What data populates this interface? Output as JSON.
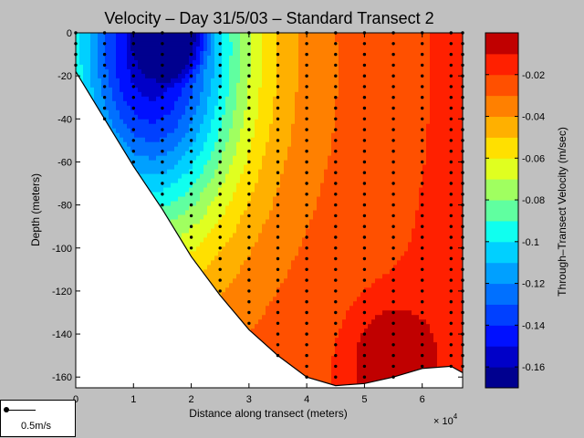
{
  "chart_data": {
    "type": "heatmap",
    "title": "Velocity – Day 31/5/03 – Standard Transect 2",
    "xlabel": "Distance along transect (meters)",
    "ylabel": "Depth (meters)",
    "x_multiplier_label": "× 10",
    "x_multiplier_exponent": "4",
    "xlim": [
      0,
      67000
    ],
    "ylim": [
      -165,
      0
    ],
    "x_ticks": [
      0,
      1,
      2,
      3,
      4,
      5,
      6
    ],
    "y_ticks": [
      0,
      -20,
      -40,
      -60,
      -80,
      -100,
      -120,
      -140,
      -160
    ],
    "colorbar": {
      "label": "Through–Transect Velocity (m/sec)",
      "range": [
        -0.17,
        0.0
      ],
      "ticks": [
        "-0.02",
        "-0.04",
        "-0.06",
        "-0.08",
        "-0.1",
        "-0.12",
        "-0.14",
        "-0.16"
      ],
      "tick_values": [
        -0.02,
        -0.04,
        -0.06,
        -0.08,
        -0.1,
        -0.12,
        -0.14,
        -0.16
      ],
      "levels": 17,
      "colors": [
        "#00008f",
        "#0000c8",
        "#0010ff",
        "#0040ff",
        "#0070ff",
        "#00a0ff",
        "#00d0ff",
        "#10ffef",
        "#60ffa0",
        "#a0ff60",
        "#e0ff20",
        "#ffe000",
        "#ffb000",
        "#ff8000",
        "#ff5000",
        "#ff2000",
        "#c00000"
      ]
    },
    "bottom_profile": [
      [
        0,
        -18
      ],
      [
        5000,
        -40
      ],
      [
        10000,
        -62
      ],
      [
        15000,
        -82
      ],
      [
        20000,
        -104
      ],
      [
        25000,
        -122
      ],
      [
        30000,
        -138
      ],
      [
        35000,
        -150
      ],
      [
        40000,
        -160
      ],
      [
        45000,
        -164
      ],
      [
        50000,
        -163
      ],
      [
        55000,
        -160
      ],
      [
        60000,
        -156
      ],
      [
        65000,
        -155
      ],
      [
        67000,
        -158
      ]
    ],
    "station_x": [
      0,
      5000,
      10000,
      15000,
      20000,
      25000,
      30000,
      35000,
      40000,
      45000,
      50000,
      55000,
      60000,
      65000,
      67000
    ],
    "sample_spacing_m": 5,
    "velocity_field_description": "minimum near x=15000, depth 0; increasing with depth and distance; secondary high near x=55000, depth -150"
  },
  "scale_arrow": {
    "label": "0.5m/s",
    "value_mps": 0.5
  }
}
